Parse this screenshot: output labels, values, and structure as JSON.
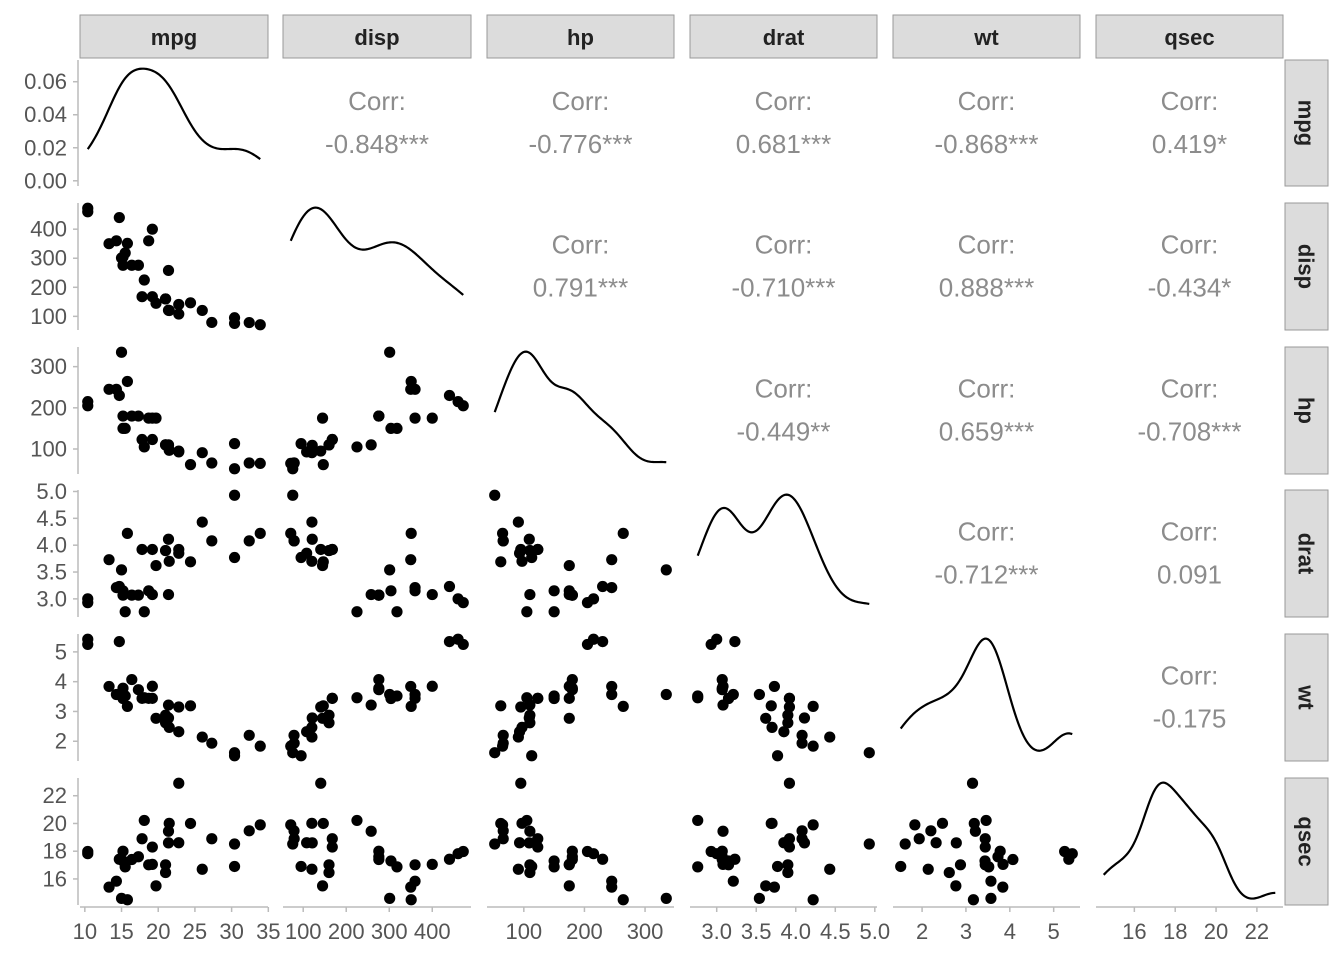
{
  "chart_data": {
    "type": "scatter",
    "title": "",
    "variables": [
      "mpg",
      "disp",
      "hp",
      "drat",
      "wt",
      "qsec"
    ],
    "corr_label": "Corr:",
    "correlations": [
      {
        "row": "disp",
        "col": "mpg",
        "label": "-0.848***"
      },
      {
        "row": "hp",
        "col": "mpg",
        "label": "-0.776***"
      },
      {
        "row": "drat",
        "col": "mpg",
        "label": "0.681***"
      },
      {
        "row": "wt",
        "col": "mpg",
        "label": "-0.868***"
      },
      {
        "row": "qsec",
        "col": "mpg",
        "label": "0.419*"
      },
      {
        "row": "hp",
        "col": "disp",
        "label": "0.791***"
      },
      {
        "row": "drat",
        "col": "disp",
        "label": "-0.710***"
      },
      {
        "row": "wt",
        "col": "disp",
        "label": "0.888***"
      },
      {
        "row": "qsec",
        "col": "disp",
        "label": "-0.434*"
      },
      {
        "row": "drat",
        "col": "hp",
        "label": "-0.449**"
      },
      {
        "row": "wt",
        "col": "hp",
        "label": "0.659***"
      },
      {
        "row": "qsec",
        "col": "hp",
        "label": "-0.708***"
      },
      {
        "row": "wt",
        "col": "drat",
        "label": "-0.712***"
      },
      {
        "row": "qsec",
        "col": "drat",
        "label": "0.091"
      },
      {
        "row": "qsec",
        "col": "wt",
        "label": "-0.175"
      }
    ],
    "axes": {
      "mpg": {
        "range": [
          10.4,
          33.9
        ],
        "ticks": [
          10,
          15,
          20,
          25,
          30,
          35
        ],
        "tick_labels": [
          "10",
          "15",
          "20",
          "25",
          "30",
          "35"
        ]
      },
      "disp": {
        "range": [
          71.1,
          472
        ],
        "ticks": [
          100,
          200,
          300,
          400
        ],
        "tick_labels": [
          "100",
          "200",
          "300",
          "400"
        ]
      },
      "hp": {
        "range": [
          52,
          335
        ],
        "ticks": [
          100,
          200,
          300
        ],
        "tick_labels": [
          "100",
          "200",
          "300"
        ]
      },
      "drat": {
        "range": [
          2.76,
          4.93
        ],
        "ticks": [
          3.0,
          3.5,
          4.0,
          4.5,
          5.0
        ],
        "tick_labels": [
          "3.0",
          "3.5",
          "4.0",
          "4.5",
          "5.0"
        ],
        "y_tick_labels": [
          "3.0",
          "3.5",
          "4.0",
          "4.5",
          "5.0"
        ]
      },
      "wt": {
        "range": [
          1.513,
          5.424
        ],
        "ticks": [
          2,
          3,
          4,
          5
        ],
        "tick_labels": [
          "2",
          "3",
          "4",
          "5"
        ]
      },
      "qsec": {
        "range": [
          14.5,
          22.9
        ],
        "ticks": [
          16,
          18,
          20,
          22
        ],
        "tick_labels": [
          "16",
          "18",
          "20",
          "22"
        ]
      }
    },
    "density_y_axis": {
      "range": [
        0,
        0.07
      ],
      "ticks": [
        0.0,
        0.02,
        0.04,
        0.06
      ],
      "tick_labels": [
        "0.00",
        "0.02",
        "0.04",
        "0.06"
      ]
    },
    "observations": {
      "mpg": [
        21.0,
        21.0,
        22.8,
        21.4,
        18.7,
        18.1,
        14.3,
        24.4,
        22.8,
        19.2,
        17.8,
        16.4,
        17.3,
        15.2,
        10.4,
        10.4,
        14.7,
        32.4,
        30.4,
        33.9,
        21.5,
        15.5,
        15.2,
        13.3,
        19.2,
        27.3,
        26.0,
        30.4,
        15.8,
        19.7,
        15.0,
        21.4
      ],
      "disp": [
        160,
        160,
        108,
        258,
        360,
        225,
        360,
        146.7,
        140.8,
        167.6,
        167.6,
        275.8,
        275.8,
        275.8,
        472,
        460,
        440,
        78.7,
        75.7,
        71.1,
        120.1,
        318,
        304,
        350,
        400,
        79,
        120.3,
        95.1,
        351,
        145,
        301,
        121
      ],
      "hp": [
        110,
        110,
        93,
        110,
        175,
        105,
        245,
        62,
        95,
        123,
        123,
        180,
        180,
        180,
        205,
        215,
        230,
        66,
        52,
        65,
        97,
        150,
        150,
        245,
        175,
        66,
        91,
        113,
        264,
        175,
        335,
        109
      ],
      "drat": [
        3.9,
        3.9,
        3.85,
        3.08,
        3.15,
        2.76,
        3.21,
        3.69,
        3.92,
        3.92,
        3.92,
        3.07,
        3.07,
        3.07,
        2.93,
        3.0,
        3.23,
        4.08,
        4.93,
        4.22,
        3.7,
        2.76,
        3.15,
        3.73,
        3.08,
        4.08,
        4.43,
        3.77,
        4.22,
        3.62,
        3.54,
        4.11
      ],
      "wt": [
        2.62,
        2.875,
        2.32,
        3.215,
        3.44,
        3.46,
        3.57,
        3.19,
        3.15,
        3.44,
        3.44,
        4.07,
        3.73,
        3.78,
        5.25,
        5.424,
        5.345,
        2.2,
        1.615,
        1.835,
        2.465,
        3.52,
        3.435,
        3.84,
        3.845,
        1.935,
        2.14,
        1.513,
        3.17,
        2.77,
        3.57,
        2.78
      ],
      "qsec": [
        16.46,
        17.02,
        18.61,
        19.44,
        17.02,
        20.22,
        15.84,
        20.0,
        22.9,
        18.3,
        18.9,
        17.4,
        17.6,
        18.0,
        17.98,
        17.82,
        17.42,
        19.47,
        18.52,
        19.9,
        20.01,
        16.87,
        17.3,
        15.41,
        17.05,
        18.9,
        16.7,
        16.9,
        14.5,
        15.5,
        14.6,
        18.6
      ]
    }
  }
}
